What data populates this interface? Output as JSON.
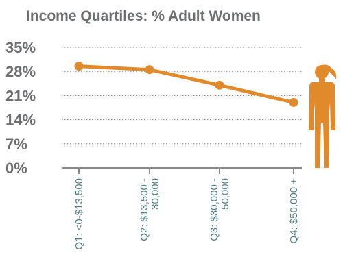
{
  "chart_data": {
    "type": "line",
    "title": "Income Quartiles: % Adult Women",
    "categories": [
      [
        "Q1: <0-$13,500"
      ],
      [
        "Q2: $13,500 -",
        "30,000"
      ],
      [
        "Q3: $30,000 -",
        "50,000"
      ],
      [
        "Q4: $50,000 +"
      ]
    ],
    "values": [
      29.5,
      28.5,
      24,
      19
    ],
    "yticks": [
      "0%",
      "7%",
      "14%",
      "21%",
      "28%",
      "35%"
    ],
    "ylim": [
      0,
      35
    ],
    "grid": true,
    "colors": {
      "line": "#e08a2c",
      "title": "#6d6e70",
      "ytick": "#6d6e70",
      "xtick": "#4e7f86",
      "icon": "#e08a2c"
    },
    "icon": "woman-figure-icon"
  }
}
